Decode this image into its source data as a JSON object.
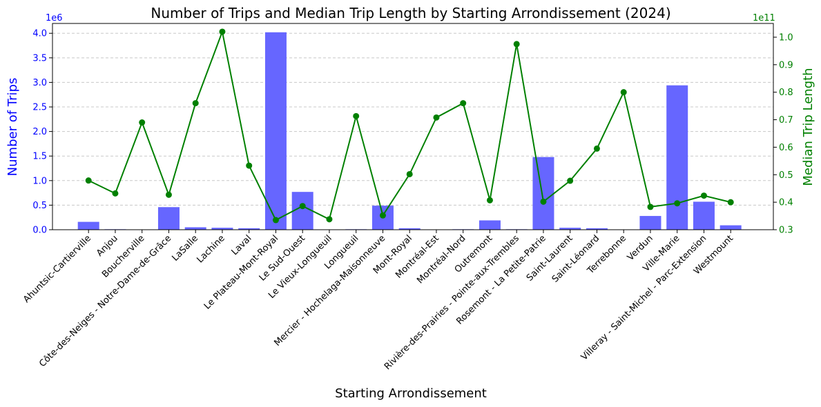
{
  "chart_data": {
    "type": "bar",
    "title": "Number of Trips and Median Trip Length by Starting Arrondissement (2024)",
    "xlabel": "Starting Arrondissement",
    "ylabel_left": "Number of Trips",
    "ylabel_right": "Median Trip Length",
    "left_offset_text": "1e6",
    "right_offset_text": "1e11",
    "left_color": "#0000ff",
    "right_color": "#008000",
    "bar_color": "#6666ff",
    "line_color": "#008000",
    "grid": true,
    "ylim_left": [
      0,
      4.2
    ],
    "ylim_right": [
      0.3,
      1.05
    ],
    "left_ticks": [
      "0.0",
      "0.5",
      "1.0",
      "1.5",
      "2.0",
      "2.5",
      "3.0",
      "3.5",
      "4.0"
    ],
    "right_ticks": [
      "0.3",
      "0.4",
      "0.5",
      "0.6",
      "0.7",
      "0.8",
      "0.9",
      "1.0"
    ],
    "categories": [
      "Ahuntsic-Cartierville",
      "Anjou",
      "Boucherville",
      "Côte-des-Neiges - Notre-Dame-de-Grâce",
      "LaSalle",
      "Lachine",
      "Laval",
      "Le Plateau-Mont-Royal",
      "Le Sud-Ouest",
      "Le Vieux-Longueuil",
      "Longueuil",
      "Mercier - Hochelaga-Maisonneuve",
      "Mont-Royal",
      "Montréal-Est",
      "Montréal-Nord",
      "Outremont",
      "Rivière-des-Prairies - Pointe-aux-Trembles",
      "Rosemont - La Petite-Patrie",
      "Saint-Laurent",
      "Saint-Léonard",
      "Terrebonne",
      "Verdun",
      "Ville-Marie",
      "Villeray - Saint-Michel - Parc-Extension",
      "Westmount"
    ],
    "series": [
      {
        "name": "Number of Trips",
        "type": "bar",
        "axis": "left",
        "values": [
          0.16,
          0.01,
          0.0,
          0.46,
          0.05,
          0.04,
          0.03,
          4.02,
          0.77,
          0.0,
          0.01,
          0.49,
          0.03,
          0.0,
          0.01,
          0.19,
          0.01,
          1.48,
          0.04,
          0.03,
          0.0,
          0.28,
          2.94,
          0.57,
          0.09
        ]
      },
      {
        "name": "Median Trip Length",
        "type": "line",
        "axis": "right",
        "values": [
          0.479,
          0.432,
          0.69,
          0.427,
          0.76,
          1.02,
          0.533,
          0.335,
          0.386,
          0.338,
          0.713,
          0.352,
          0.502,
          0.708,
          0.76,
          0.407,
          0.975,
          0.402,
          0.478,
          0.595,
          0.8,
          0.383,
          0.396,
          0.424,
          0.4
        ]
      }
    ]
  }
}
